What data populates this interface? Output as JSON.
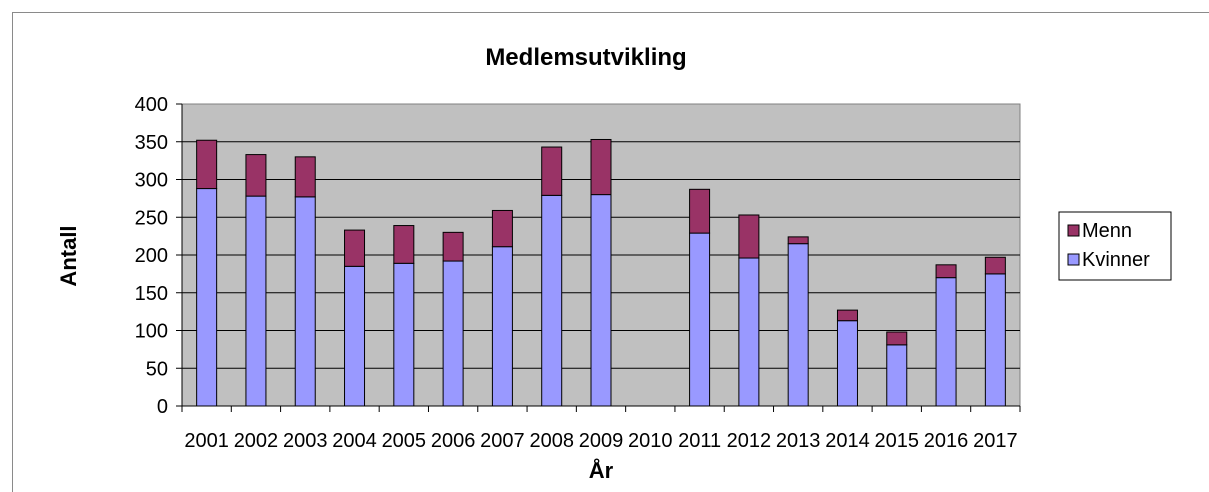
{
  "chart_data": {
    "type": "bar",
    "stacked": true,
    "title": "Medlemsutvikling",
    "xlabel": "År",
    "ylabel": "Antall",
    "ylim": [
      0,
      400
    ],
    "yticks": [
      0,
      50,
      100,
      150,
      200,
      250,
      300,
      350,
      400
    ],
    "grid": true,
    "legend_position": "right",
    "categories": [
      "2001",
      "2002",
      "2003",
      "2004",
      "2005",
      "2006",
      "2007",
      "2008",
      "2009",
      "2010",
      "2011",
      "2012",
      "2013",
      "2014",
      "2015",
      "2016",
      "2017"
    ],
    "series": [
      {
        "name": "Kvinner",
        "color": "#9999ff",
        "values": [
          288,
          278,
          277,
          185,
          189,
          192,
          211,
          279,
          280,
          0,
          229,
          196,
          215,
          113,
          81,
          170,
          175
        ]
      },
      {
        "name": "Menn",
        "color": "#993366",
        "values": [
          64,
          55,
          53,
          48,
          50,
          38,
          48,
          64,
          73,
          0,
          58,
          57,
          9,
          14,
          17,
          17,
          22
        ]
      }
    ],
    "legend_order": [
      "Menn",
      "Kvinner"
    ],
    "plot_background": "#c0c0c0"
  }
}
